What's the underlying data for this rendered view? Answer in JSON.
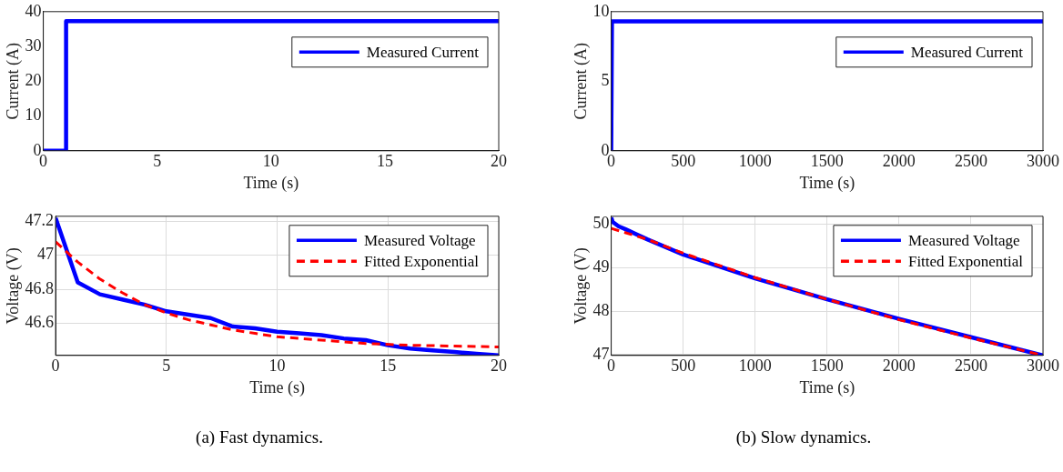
{
  "chart_data": [
    {
      "type": "line",
      "xlabel": "Time (s)",
      "ylabel": "Current (A)",
      "xlim": [
        0,
        20
      ],
      "xticks": [
        0,
        5,
        10,
        15,
        20
      ],
      "ylim": [
        0,
        40
      ],
      "yticks": [
        0,
        10,
        20,
        30,
        40
      ],
      "grid": false,
      "legend": "top right",
      "marker": "none",
      "series": [
        {
          "name": "Measured Current",
          "color": "#0000ff",
          "line_style": "solid",
          "x": [
            0,
            1,
            1,
            20
          ],
          "values": [
            0,
            0,
            37.3,
            37.3
          ]
        }
      ]
    },
    {
      "type": "line",
      "xlabel": "Time (s)",
      "ylabel": "Current (A)",
      "xlim": [
        0,
        3000
      ],
      "xticks": [
        0,
        500,
        1000,
        1500,
        2000,
        2500,
        3000
      ],
      "ylim": [
        0,
        10
      ],
      "yticks": [
        0,
        5,
        10
      ],
      "grid": false,
      "legend": "top right",
      "marker": "none",
      "series": [
        {
          "name": "Measured Current",
          "color": "#0000ff",
          "line_style": "solid",
          "x": [
            0,
            5,
            3000
          ],
          "values": [
            0,
            9.3,
            9.3
          ]
        }
      ]
    },
    {
      "type": "line",
      "xlabel": "Time (s)",
      "ylabel": "Voltage (V)",
      "xlim": [
        0,
        20
      ],
      "xticks": [
        0,
        5,
        10,
        15,
        20
      ],
      "ylim": [
        46.41,
        47.23
      ],
      "yticks": [
        46.6,
        46.8,
        47,
        47.2
      ],
      "grid": true,
      "legend": "top right",
      "marker": "none",
      "annotations": [
        "(a)  Fast dynamics."
      ],
      "series": [
        {
          "name": "Measured Voltage",
          "color": "#0000ff",
          "line_style": "solid",
          "x": [
            0,
            1,
            2,
            3,
            4,
            5,
            6,
            7,
            8,
            9,
            10,
            11,
            12,
            13,
            14,
            15,
            16,
            17,
            18,
            19,
            20
          ],
          "values": [
            47.22,
            46.84,
            46.77,
            46.74,
            46.71,
            46.67,
            46.65,
            46.63,
            46.58,
            46.57,
            46.55,
            46.54,
            46.53,
            46.51,
            46.5,
            46.47,
            46.45,
            46.44,
            46.43,
            46.42,
            46.41
          ]
        },
        {
          "name": "Fitted Exponential",
          "color": "#ff0000",
          "line_style": "dashed",
          "x": [
            0,
            1,
            2,
            3,
            4,
            5,
            6,
            7,
            8,
            9,
            10,
            12,
            14,
            16,
            18,
            20
          ],
          "values": [
            47.08,
            46.96,
            46.86,
            46.78,
            46.71,
            46.66,
            46.62,
            46.59,
            46.56,
            46.54,
            46.52,
            46.5,
            46.48,
            46.47,
            46.465,
            46.46
          ]
        }
      ]
    },
    {
      "type": "line",
      "xlabel": "Time (s)",
      "ylabel": "Voltage (V)",
      "xlim": [
        0,
        3000
      ],
      "xticks": [
        0,
        500,
        1000,
        1500,
        2000,
        2500,
        3000
      ],
      "ylim": [
        46.98,
        50.18
      ],
      "yticks": [
        47,
        48,
        49,
        50
      ],
      "grid": true,
      "legend": "top right",
      "marker": "none",
      "annotations": [
        "(b)  Slow dynamics."
      ],
      "series": [
        {
          "name": "Measured Voltage",
          "color": "#0000ff",
          "line_style": "solid",
          "x": [
            0,
            10,
            50,
            100,
            250,
            500,
            1000,
            1500,
            2000,
            2500,
            3000
          ],
          "values": [
            50.15,
            50.05,
            49.95,
            49.88,
            49.65,
            49.3,
            48.75,
            48.27,
            47.82,
            47.4,
            46.98
          ]
        },
        {
          "name": "Fitted Exponential",
          "color": "#ff0000",
          "line_style": "dashed",
          "x": [
            0,
            250,
            500,
            1000,
            1500,
            2000,
            2500,
            3000
          ],
          "values": [
            49.9,
            49.65,
            49.33,
            48.77,
            48.27,
            47.8,
            47.38,
            46.98
          ]
        }
      ]
    }
  ]
}
